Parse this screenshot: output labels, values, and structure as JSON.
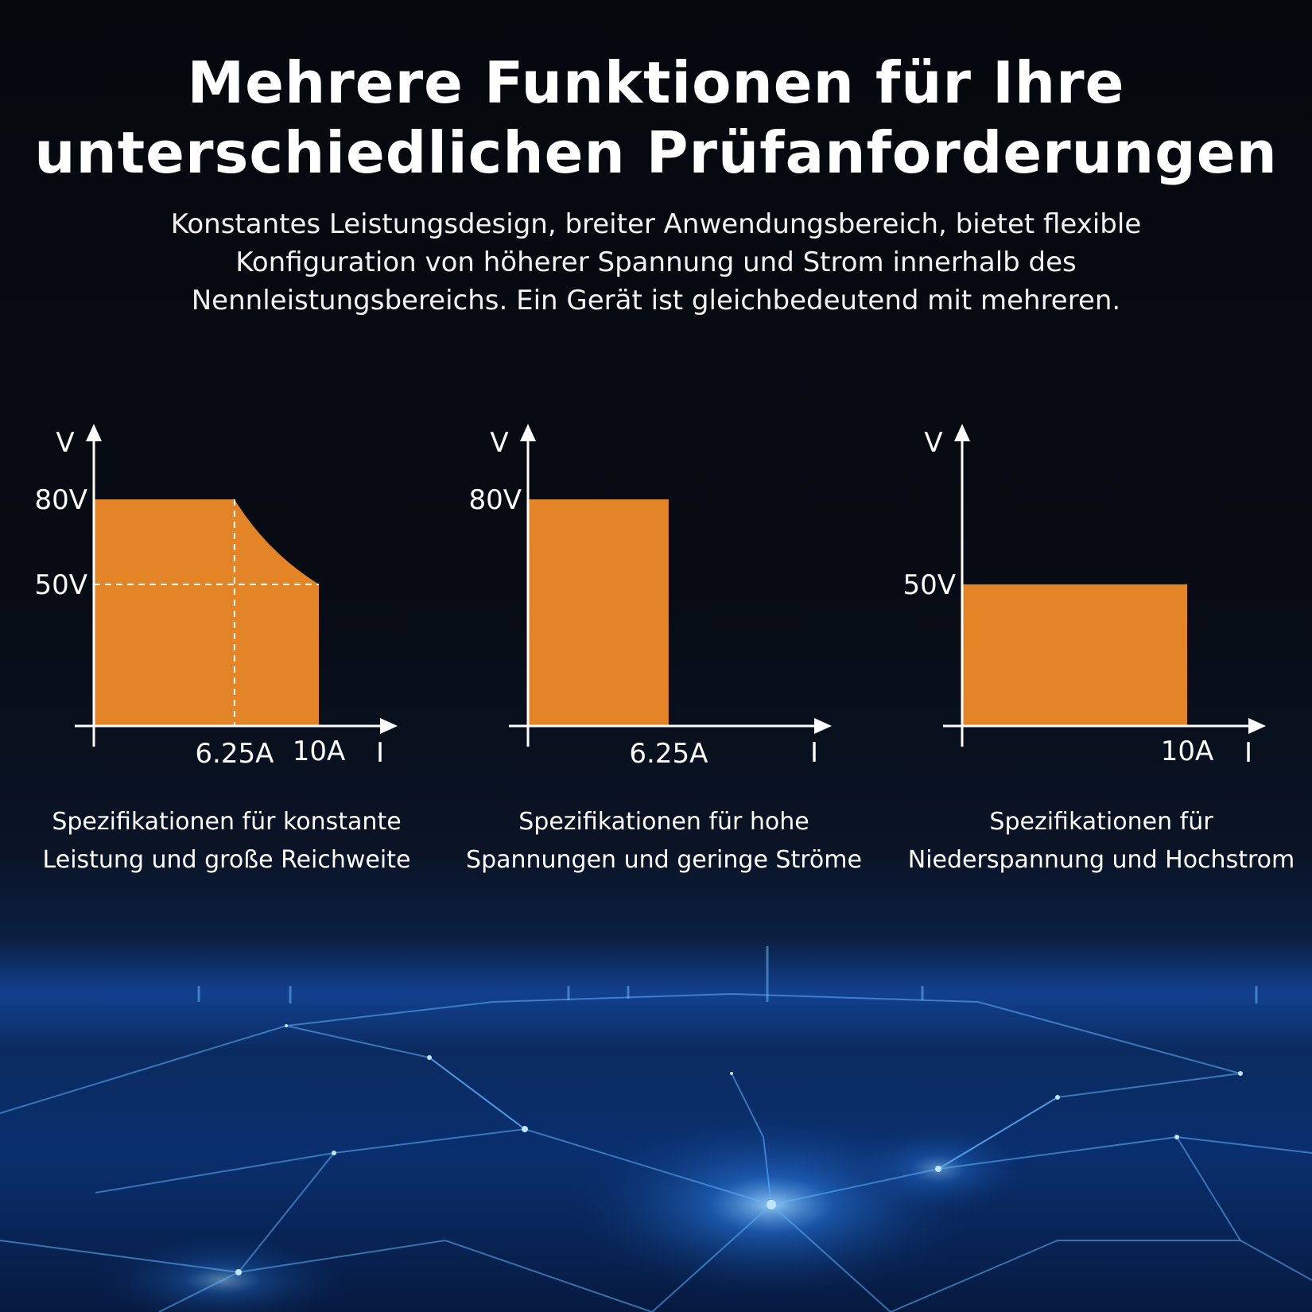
{
  "header": {
    "title_line1": "Mehrere Funktionen für Ihre",
    "title_line2": "unterschiedlichen Prüfanforderungen",
    "subtitle": "Konstantes Leistungsdesign, breiter Anwendungsbereich, bietet flexible Konfiguration von höherer Spannung und Strom innerhalb des Nennleistungsbereichs. Ein Gerät ist gleichbedeutend mit mehreren."
  },
  "colors": {
    "fill": "#e38527",
    "axis": "#ffffff",
    "background_glow": "#1f6fff"
  },
  "chart_data": [
    {
      "type": "area",
      "title": "",
      "xlabel": "I",
      "ylabel": "V",
      "xlim": [
        0,
        12
      ],
      "ylim": [
        0,
        100
      ],
      "points": [
        [
          0,
          80
        ],
        [
          6.25,
          80
        ],
        [
          7,
          71.4
        ],
        [
          8,
          62.5
        ],
        [
          9,
          55.6
        ],
        [
          10,
          50
        ],
        [
          10,
          0
        ],
        [
          0,
          0
        ]
      ],
      "curve": "constant-power",
      "reference_lines": [
        {
          "axis": "y",
          "value": 50
        },
        {
          "axis": "x",
          "value": 6.25
        }
      ],
      "yticks": [
        {
          "value": 80,
          "label": "80V"
        },
        {
          "value": 50,
          "label": "50V"
        }
      ],
      "xticks": [
        {
          "value": 6.25,
          "label": "6.25A"
        },
        {
          "value": 10,
          "label": "10A"
        }
      ],
      "caption_line1": "Spezifikationen für konstante",
      "caption_line2": "Leistung und große Reichweite"
    },
    {
      "type": "area",
      "title": "",
      "xlabel": "I",
      "ylabel": "V",
      "xlim": [
        0,
        12
      ],
      "ylim": [
        0,
        100
      ],
      "points": [
        [
          0,
          80
        ],
        [
          6.25,
          80
        ],
        [
          6.25,
          0
        ],
        [
          0,
          0
        ]
      ],
      "yticks": [
        {
          "value": 80,
          "label": "80V"
        }
      ],
      "xticks": [
        {
          "value": 6.25,
          "label": "6.25A"
        }
      ],
      "caption_line1": "Spezifikationen für hohe",
      "caption_line2": "Spannungen und geringe Ströme"
    },
    {
      "type": "area",
      "title": "",
      "xlabel": "I",
      "ylabel": "V",
      "xlim": [
        0,
        12
      ],
      "ylim": [
        0,
        100
      ],
      "points": [
        [
          0,
          50
        ],
        [
          10,
          50
        ],
        [
          10,
          0
        ],
        [
          0,
          0
        ]
      ],
      "yticks": [
        {
          "value": 50,
          "label": "50V"
        }
      ],
      "xticks": [
        {
          "value": 10,
          "label": "10A"
        }
      ],
      "caption_line1": "Spezifikationen für",
      "caption_line2": "Niederspannung und Hochstrom"
    }
  ]
}
